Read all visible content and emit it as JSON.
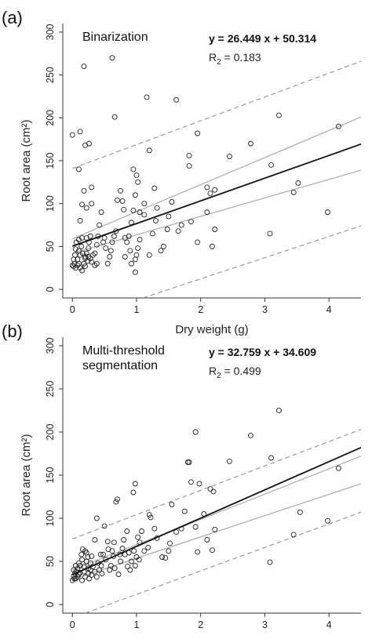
{
  "chart_data": [
    {
      "type": "scatter",
      "panel_label": "(a)",
      "method_label": [
        "Binarization"
      ],
      "equation": "y = 26.449 x + 50.314",
      "r2_prefix": "R",
      "r2_sub": "2",
      "r2_value": " = 0.183",
      "xlabel": "Dry weight (g)",
      "ylabel": "Root area (cm²)",
      "xlim": [
        -0.15,
        4.5
      ],
      "ylim": [
        -10,
        310
      ],
      "xticks": [
        0,
        1,
        2,
        3,
        4
      ],
      "yticks": [
        0,
        50,
        100,
        150,
        200,
        250,
        300
      ],
      "regression": {
        "slope": 26.449,
        "intercept": 50.314
      },
      "confidence_band": {
        "upper": [
          [
            0,
            59
          ],
          [
            4.5,
            201
          ]
        ],
        "lower": [
          [
            0,
            42
          ],
          [
            4.5,
            139
          ]
        ]
      },
      "prediction_band": {
        "upper": [
          [
            0,
            141
          ],
          [
            4.5,
            266
          ]
        ],
        "lower": [
          [
            1.1,
            -10
          ],
          [
            4.5,
            74
          ]
        ]
      },
      "points": [
        [
          0.0,
          180
        ],
        [
          0.1,
          140
        ],
        [
          0.12,
          184
        ],
        [
          0.18,
          260
        ],
        [
          0.2,
          168
        ],
        [
          0.26,
          170
        ],
        [
          0.62,
          270
        ],
        [
          0.66,
          201
        ],
        [
          1.16,
          224
        ],
        [
          1.62,
          221
        ],
        [
          1.95,
          182
        ],
        [
          1.82,
          156
        ],
        [
          1.82,
          144
        ],
        [
          2.45,
          155
        ],
        [
          2.78,
          170
        ],
        [
          3.22,
          203
        ],
        [
          3.1,
          145
        ],
        [
          4.15,
          190
        ],
        [
          3.52,
          124
        ],
        [
          3.45,
          113
        ],
        [
          3.98,
          90
        ],
        [
          3.08,
          65
        ],
        [
          2.1,
          119
        ],
        [
          2.15,
          112
        ],
        [
          2.22,
          116
        ],
        [
          2.1,
          90
        ],
        [
          2.22,
          70
        ],
        [
          2.18,
          50
        ],
        [
          1.95,
          55
        ],
        [
          1.85,
          79
        ],
        [
          1.7,
          75
        ],
        [
          1.65,
          68
        ],
        [
          1.55,
          102
        ],
        [
          1.5,
          85
        ],
        [
          1.48,
          70
        ],
        [
          1.42,
          50
        ],
        [
          1.38,
          45
        ],
        [
          1.32,
          95
        ],
        [
          1.3,
          80
        ],
        [
          1.28,
          118
        ],
        [
          1.2,
          162
        ],
        [
          1.25,
          65
        ],
        [
          1.2,
          40
        ],
        [
          1.12,
          100
        ],
        [
          1.12,
          87
        ],
        [
          1.05,
          90
        ],
        [
          1.02,
          125
        ],
        [
          1.0,
          133
        ],
        [
          0.95,
          140
        ],
        [
          0.98,
          110
        ],
        [
          0.95,
          92
        ],
        [
          0.92,
          78
        ],
        [
          0.88,
          62
        ],
        [
          1.05,
          58
        ],
        [
          1.02,
          48
        ],
        [
          1.0,
          40
        ],
        [
          0.98,
          35
        ],
        [
          0.98,
          20
        ],
        [
          0.92,
          30
        ],
        [
          0.9,
          45
        ],
        [
          0.85,
          55
        ],
        [
          0.82,
          60
        ],
        [
          0.82,
          38
        ],
        [
          0.8,
          93
        ],
        [
          0.78,
          103
        ],
        [
          0.75,
          115
        ],
        [
          0.7,
          104
        ],
        [
          0.68,
          68
        ],
        [
          0.65,
          62
        ],
        [
          0.62,
          55
        ],
        [
          0.6,
          45
        ],
        [
          0.58,
          38
        ],
        [
          0.55,
          30
        ],
        [
          0.52,
          48
        ],
        [
          0.48,
          55
        ],
        [
          0.45,
          90
        ],
        [
          0.42,
          75
        ],
        [
          0.4,
          62
        ],
        [
          0.38,
          52
        ],
        [
          0.35,
          42
        ],
        [
          0.3,
          119
        ],
        [
          0.3,
          100
        ],
        [
          0.28,
          62
        ],
        [
          0.26,
          55
        ],
        [
          0.25,
          48
        ],
        [
          0.22,
          95
        ],
        [
          0.22,
          42
        ],
        [
          0.2,
          36
        ],
        [
          0.18,
          115
        ],
        [
          0.15,
          99
        ],
        [
          0.15,
          60
        ],
        [
          0.14,
          50
        ],
        [
          0.12,
          80
        ],
        [
          0.12,
          40
        ],
        [
          0.1,
          58
        ],
        [
          0.1,
          30
        ],
        [
          0.08,
          35
        ],
        [
          0.06,
          55
        ],
        [
          0.05,
          47
        ],
        [
          0.04,
          40
        ],
        [
          0.03,
          30
        ],
        [
          0.02,
          27
        ],
        [
          0.0,
          28
        ],
        [
          0.02,
          35
        ],
        [
          0.05,
          25
        ],
        [
          0.08,
          28
        ],
        [
          0.1,
          45
        ],
        [
          0.12,
          25
        ],
        [
          0.15,
          22
        ],
        [
          0.18,
          30
        ],
        [
          0.2,
          27
        ],
        [
          0.22,
          60
        ],
        [
          0.25,
          38
        ],
        [
          0.28,
          36
        ],
        [
          0.3,
          32
        ],
        [
          0.32,
          40
        ],
        [
          0.35,
          28
        ],
        [
          0.38,
          30
        ],
        [
          0.2,
          38
        ],
        [
          0.24,
          33
        ],
        [
          0.16,
          42
        ],
        [
          0.5,
          60
        ]
      ]
    },
    {
      "type": "scatter",
      "panel_label": "(b)",
      "method_label": [
        "Multi-threshold",
        "segmentation"
      ],
      "equation": "y = 32.759 x + 34.609",
      "r2_prefix": "R",
      "r2_sub": "2",
      "r2_value": " = 0.499",
      "xlabel": "Dry weight (g)",
      "ylabel": "Root area (cm²)",
      "xlim": [
        -0.15,
        4.5
      ],
      "ylim": [
        -10,
        310
      ],
      "xticks": [
        0,
        1,
        2,
        3,
        4
      ],
      "yticks": [
        0,
        50,
        100,
        150,
        200,
        250,
        300
      ],
      "regression": {
        "slope": 32.759,
        "intercept": 34.609
      },
      "confidence_band": {
        "upper": [
          [
            0,
            40
          ],
          [
            4.5,
            172
          ]
        ],
        "lower": [
          [
            0,
            29
          ],
          [
            4.5,
            140
          ]
        ]
      },
      "prediction_band": {
        "upper": [
          [
            0,
            76
          ],
          [
            4.5,
            203
          ]
        ],
        "lower": [
          [
            0.2,
            -10
          ],
          [
            4.5,
            107
          ]
        ]
      },
      "points": [
        [
          3.22,
          225
        ],
        [
          1.92,
          200
        ],
        [
          2.78,
          196
        ],
        [
          3.1,
          170
        ],
        [
          2.45,
          166
        ],
        [
          1.8,
          165
        ],
        [
          1.82,
          165
        ],
        [
          1.85,
          142
        ],
        [
          1.98,
          140
        ],
        [
          2.2,
          131
        ],
        [
          2.15,
          134
        ],
        [
          4.15,
          158
        ],
        [
          3.55,
          107
        ],
        [
          3.98,
          97
        ],
        [
          3.45,
          81
        ],
        [
          3.08,
          49
        ],
        [
          2.22,
          87
        ],
        [
          2.18,
          63
        ],
        [
          2.1,
          75
        ],
        [
          2.05,
          105
        ],
        [
          1.95,
          61
        ],
        [
          1.92,
          90
        ],
        [
          1.75,
          108
        ],
        [
          1.7,
          88
        ],
        [
          1.62,
          84
        ],
        [
          1.55,
          116
        ],
        [
          1.52,
          71
        ],
        [
          1.5,
          62
        ],
        [
          1.45,
          54
        ],
        [
          1.4,
          55
        ],
        [
          1.32,
          77
        ],
        [
          1.28,
          88
        ],
        [
          1.2,
          104
        ],
        [
          1.22,
          101
        ],
        [
          1.18,
          66
        ],
        [
          1.12,
          62
        ],
        [
          1.08,
          85
        ],
        [
          1.05,
          72
        ],
        [
          1.02,
          78
        ],
        [
          1.0,
          55
        ],
        [
          0.98,
          140
        ],
        [
          0.98,
          45
        ],
        [
          0.95,
          130
        ],
        [
          0.92,
          50
        ],
        [
          0.9,
          40
        ],
        [
          0.85,
          85
        ],
        [
          0.82,
          58
        ],
        [
          0.8,
          75
        ],
        [
          0.78,
          65
        ],
        [
          0.75,
          50
        ],
        [
          0.72,
          35
        ],
        [
          0.7,
          122
        ],
        [
          0.68,
          119
        ],
        [
          0.65,
          72
        ],
        [
          0.62,
          62
        ],
        [
          0.6,
          45
        ],
        [
          0.58,
          40
        ],
        [
          0.55,
          73
        ],
        [
          0.5,
          91
        ],
        [
          0.48,
          58
        ],
        [
          0.45,
          45
        ],
        [
          0.42,
          40
        ],
        [
          0.38,
          100
        ],
        [
          0.35,
          75
        ],
        [
          0.3,
          56
        ],
        [
          0.28,
          48
        ],
        [
          0.25,
          42
        ],
        [
          0.22,
          60
        ],
        [
          0.2,
          62
        ],
        [
          0.18,
          38
        ],
        [
          0.15,
          52
        ],
        [
          0.12,
          45
        ],
        [
          0.1,
          35
        ],
        [
          0.08,
          42
        ],
        [
          0.06,
          38
        ],
        [
          0.05,
          45
        ],
        [
          0.04,
          36
        ],
        [
          0.03,
          30
        ],
        [
          0.02,
          33
        ],
        [
          0.0,
          28
        ],
        [
          0.02,
          40
        ],
        [
          0.05,
          30
        ],
        [
          0.08,
          32
        ],
        [
          0.1,
          48
        ],
        [
          0.12,
          37
        ],
        [
          0.15,
          28
        ],
        [
          0.18,
          44
        ],
        [
          0.2,
          32
        ],
        [
          0.22,
          50
        ],
        [
          0.25,
          36
        ],
        [
          0.28,
          40
        ],
        [
          0.3,
          34
        ],
        [
          0.32,
          44
        ],
        [
          0.35,
          38
        ],
        [
          0.38,
          32
        ],
        [
          0.14,
          58
        ],
        [
          0.16,
          64
        ],
        [
          0.24,
          55
        ],
        [
          0.4,
          48
        ],
        [
          0.44,
          58
        ],
        [
          0.52,
          52
        ],
        [
          0.56,
          64
        ],
        [
          0.64,
          56
        ],
        [
          0.74,
          58
        ],
        [
          0.88,
          60
        ],
        [
          0.96,
          62
        ],
        [
          1.04,
          52
        ],
        [
          0.86,
          44
        ],
        [
          0.66,
          42
        ],
        [
          0.46,
          36
        ],
        [
          0.26,
          30
        ]
      ]
    }
  ]
}
